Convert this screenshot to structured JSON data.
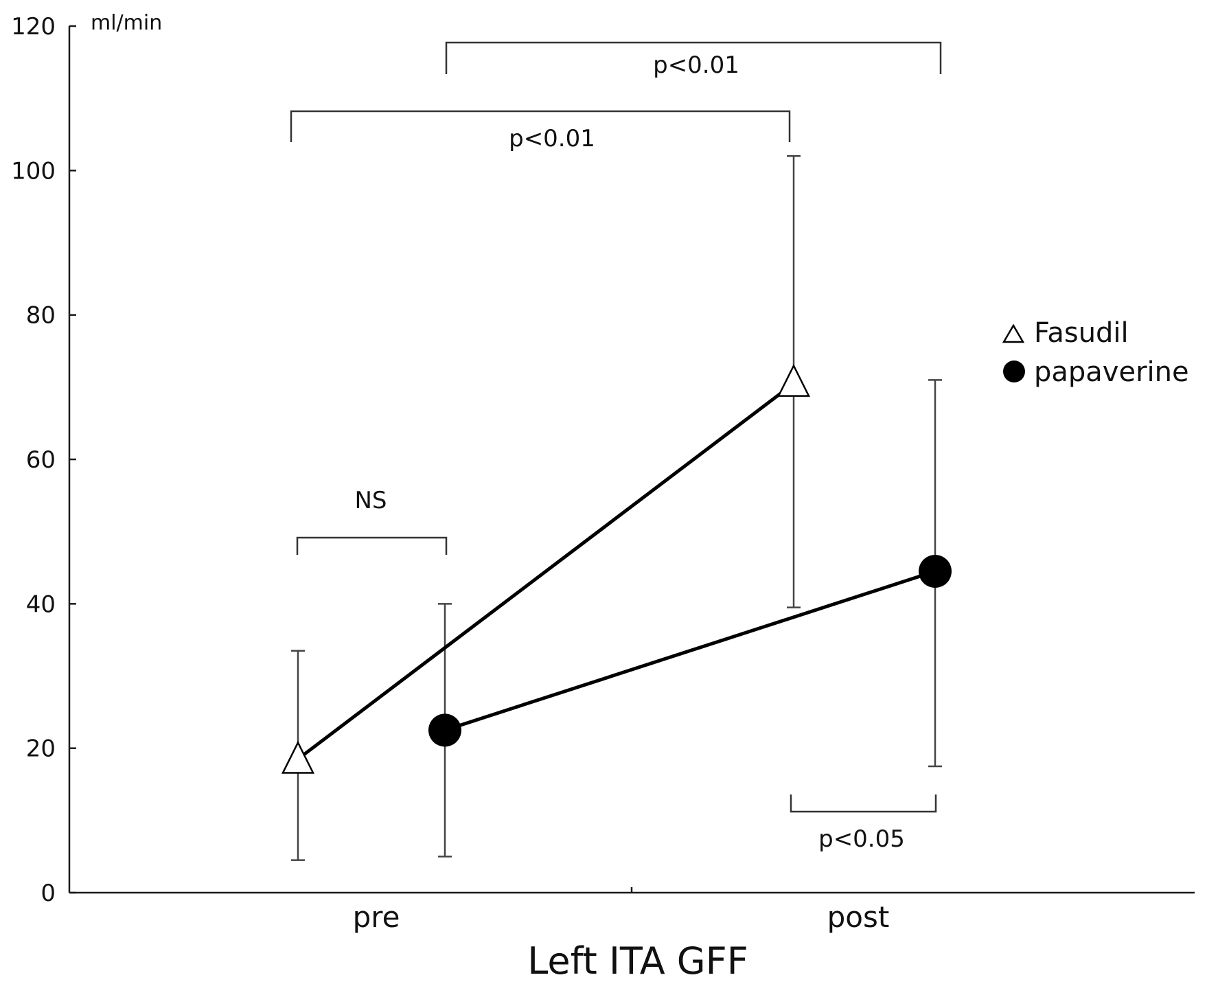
{
  "chart_data": {
    "type": "line",
    "title": "",
    "xlabel": "Left ITA GFF",
    "ylabel": "",
    "unit_label": "ml/min",
    "categories": [
      "pre",
      "post"
    ],
    "ylim": [
      0,
      120
    ],
    "yticks": [
      0,
      20,
      40,
      60,
      80,
      100,
      120
    ],
    "grid": false,
    "legend_position": "right",
    "series": [
      {
        "name": "Fasudil",
        "marker": "open-triangle",
        "color": "#000000",
        "values": [
          18.5,
          70.5
        ],
        "err_low": [
          4.5,
          39.5
        ],
        "err_high": [
          33.5,
          102
        ]
      },
      {
        "name": "papaverine",
        "marker": "filled-circle",
        "color": "#000000",
        "values": [
          22.5,
          44.5
        ],
        "err_low": [
          5,
          17.5
        ],
        "err_high": [
          40,
          71
        ]
      }
    ],
    "annotations": [
      {
        "text": "p<0.01",
        "from": "Fasudil-pre",
        "to": "Fasudil-post"
      },
      {
        "text": "p<0.01",
        "from": "papaverine-pre",
        "to": "papaverine-post"
      },
      {
        "text": "NS",
        "from": "Fasudil-pre",
        "to": "papaverine-pre"
      },
      {
        "text": "p<0.05",
        "from": "Fasudil-post",
        "to": "papaverine-post"
      }
    ]
  }
}
